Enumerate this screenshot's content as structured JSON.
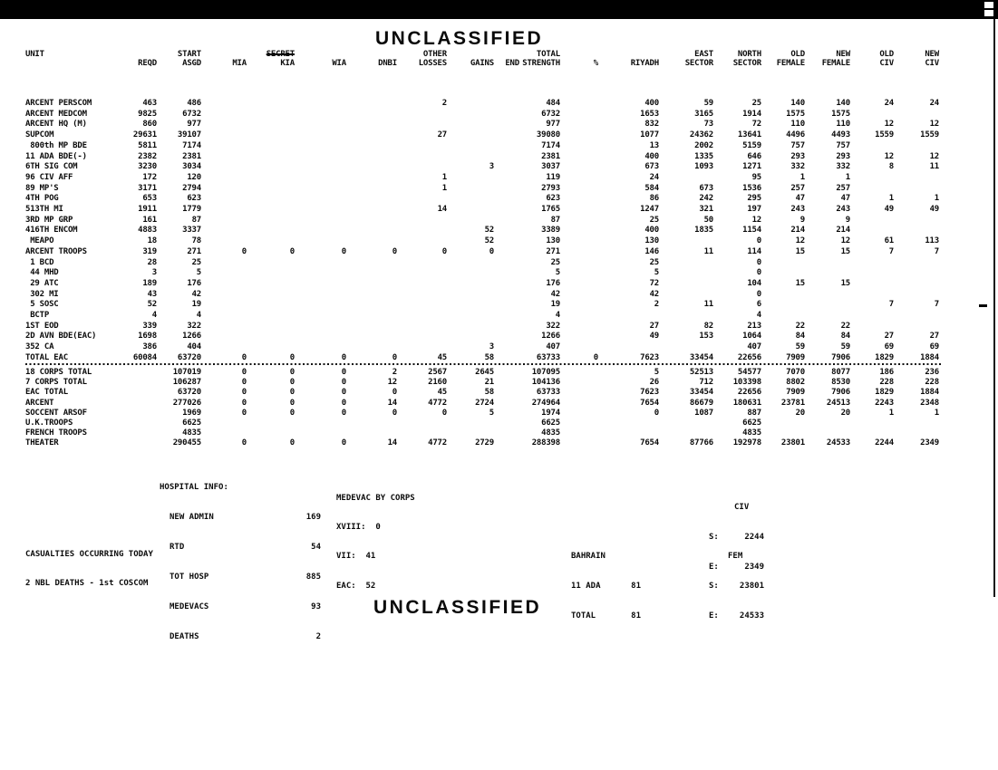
{
  "classification": {
    "top": "UNCLASSIFIED",
    "bottom": "UNCLASSIFIED"
  },
  "table": {
    "columns": [
      {
        "key": "unit",
        "line1": "UNIT",
        "line2": "",
        "align": "left",
        "width": 100
      },
      {
        "key": "reqd",
        "line1": "",
        "line2": "REQD",
        "align": "right",
        "width": 45
      },
      {
        "key": "asgd",
        "line1": "START",
        "line2": "ASGD",
        "align": "right",
        "width": 49
      },
      {
        "key": "mia",
        "line1": "",
        "line2": "MIA",
        "align": "right",
        "width": 50
      },
      {
        "key": "kia",
        "line1": "",
        "line2": "KIA",
        "align": "right",
        "width": 53,
        "struck": "SECRET"
      },
      {
        "key": "wia",
        "line1": "",
        "line2": "WIA",
        "align": "right",
        "width": 57
      },
      {
        "key": "dnbi",
        "line1": "",
        "line2": "DNBI",
        "align": "right",
        "width": 56
      },
      {
        "key": "other_losses",
        "line1": "OTHER",
        "line2": "LOSSES",
        "align": "right",
        "width": 55
      },
      {
        "key": "gains",
        "line1": "",
        "line2": "GAINS",
        "align": "right",
        "width": 52
      },
      {
        "key": "end",
        "line1": "",
        "line2": "END",
        "align": "right",
        "width": 28
      },
      {
        "key": "total_strength",
        "line1": "TOTAL",
        "line2": "STRENGTH",
        "align": "right",
        "width": 45
      },
      {
        "key": "pct",
        "line1": "",
        "line2": "%",
        "align": "right",
        "width": 42
      },
      {
        "key": "riyadh",
        "line1": "",
        "line2": "RIYADH",
        "align": "right",
        "width": 67
      },
      {
        "key": "east_sector",
        "line1": "EAST",
        "line2": "SECTOR",
        "align": "right",
        "width": 60
      },
      {
        "key": "north_sector",
        "line1": "NORTH",
        "line2": "SECTOR",
        "align": "right",
        "width": 53
      },
      {
        "key": "old_female",
        "line1": "OLD",
        "line2": "FEMALE",
        "align": "right",
        "width": 48
      },
      {
        "key": "new_female",
        "line1": "NEW",
        "line2": "FEMALE",
        "align": "right",
        "width": 50
      },
      {
        "key": "old_civ",
        "line1": "OLD",
        "line2": "CIV",
        "align": "right",
        "width": 48
      },
      {
        "key": "new_civ",
        "line1": "NEW",
        "line2": "CIV",
        "align": "right",
        "width": 50
      }
    ],
    "units": [
      [
        "ARCENT PERSCOM",
        "463",
        "486",
        "",
        "",
        "",
        "",
        "2",
        "",
        "",
        "484",
        "",
        "400",
        "59",
        "25",
        "140",
        "140",
        "24",
        "24"
      ],
      [
        "ARCENT MEDCOM",
        "9825",
        "6732",
        "",
        "",
        "",
        "",
        "",
        "",
        "",
        "6732",
        "",
        "1653",
        "3165",
        "1914",
        "1575",
        "1575",
        "",
        ""
      ],
      [
        "ARCENT HQ (M)",
        "860",
        "977",
        "",
        "",
        "",
        "",
        "",
        "",
        "",
        "977",
        "",
        "832",
        "73",
        "72",
        "110",
        "110",
        "12",
        "12"
      ],
      [
        "SUPCOM",
        "29631",
        "39107",
        "",
        "",
        "",
        "",
        "27",
        "",
        "",
        "39080",
        "",
        "1077",
        "24362",
        "13641",
        "4496",
        "4493",
        "1559",
        "1559"
      ],
      [
        " 800th MP BDE",
        "5811",
        "7174",
        "",
        "",
        "",
        "",
        "",
        "",
        "",
        "7174",
        "",
        "13",
        "2002",
        "5159",
        "757",
        "757",
        "",
        ""
      ],
      [
        "11 ADA BDE(-)",
        "2382",
        "2381",
        "",
        "",
        "",
        "",
        "",
        "",
        "",
        "2381",
        "",
        "400",
        "1335",
        "646",
        "293",
        "293",
        "12",
        "12"
      ],
      [
        "6TH SIG COM",
        "3230",
        "3034",
        "",
        "",
        "",
        "",
        "",
        "3",
        "",
        "3037",
        "",
        "673",
        "1093",
        "1271",
        "332",
        "332",
        "8",
        "11"
      ],
      [
        "96 CIV AFF",
        "172",
        "120",
        "",
        "",
        "",
        "",
        "1",
        "",
        "",
        "119",
        "",
        "24",
        "",
        "95",
        "1",
        "1",
        "",
        ""
      ],
      [
        "89 MP'S",
        "3171",
        "2794",
        "",
        "",
        "",
        "",
        "1",
        "",
        "",
        "2793",
        "",
        "584",
        "673",
        "1536",
        "257",
        "257",
        "",
        ""
      ],
      [
        "4TH POG",
        "653",
        "623",
        "",
        "",
        "",
        "",
        "",
        "",
        "",
        "623",
        "",
        "86",
        "242",
        "295",
        "47",
        "47",
        "1",
        "1"
      ],
      [
        "513TH MI",
        "1911",
        "1779",
        "",
        "",
        "",
        "",
        "14",
        "",
        "",
        "1765",
        "",
        "1247",
        "321",
        "197",
        "243",
        "243",
        "49",
        "49"
      ],
      [
        "3RD MP GRP",
        "161",
        "87",
        "",
        "",
        "",
        "",
        "",
        "",
        "",
        "87",
        "",
        "25",
        "50",
        "12",
        "9",
        "9",
        "",
        ""
      ],
      [
        "416TH ENCOM",
        "4883",
        "3337",
        "",
        "",
        "",
        "",
        "",
        "52",
        "",
        "3389",
        "",
        "400",
        "1835",
        "1154",
        "214",
        "214",
        "",
        ""
      ],
      [
        " MEAPO",
        "18",
        "78",
        "",
        "",
        "",
        "",
        "",
        "52",
        "",
        "130",
        "",
        "130",
        "",
        "0",
        "12",
        "12",
        "61",
        "113"
      ],
      [
        "ARCENT TROOPS",
        "319",
        "271",
        "0",
        "0",
        "0",
        "0",
        "0",
        "0",
        "",
        "271",
        "",
        "146",
        "11",
        "114",
        "15",
        "15",
        "7",
        "7"
      ],
      [
        " 1 BCD",
        "28",
        "25",
        "",
        "",
        "",
        "",
        "",
        "",
        "",
        "25",
        "",
        "25",
        "",
        "0",
        "",
        "",
        "",
        ""
      ],
      [
        " 44 MHD",
        "3",
        "5",
        "",
        "",
        "",
        "",
        "",
        "",
        "",
        "5",
        "",
        "5",
        "",
        "0",
        "",
        "",
        "",
        ""
      ],
      [
        " 29 ATC",
        "189",
        "176",
        "",
        "",
        "",
        "",
        "",
        "",
        "",
        "176",
        "",
        "72",
        "",
        "104",
        "15",
        "15",
        "",
        ""
      ],
      [
        " 302 MI",
        "43",
        "42",
        "",
        "",
        "",
        "",
        "",
        "",
        "",
        "42",
        "",
        "42",
        "",
        "0",
        "",
        "",
        "",
        ""
      ],
      [
        " 5 SOSC",
        "52",
        "19",
        "",
        "",
        "",
        "",
        "",
        "",
        "",
        "19",
        "",
        "2",
        "11",
        "6",
        "",
        "",
        "7",
        "7"
      ],
      [
        " BCTP",
        "4",
        "4",
        "",
        "",
        "",
        "",
        "",
        "",
        "",
        "4",
        "",
        "",
        "",
        "4",
        "",
        "",
        "",
        ""
      ],
      [
        "1ST EOD",
        "339",
        "322",
        "",
        "",
        "",
        "",
        "",
        "",
        "",
        "322",
        "",
        "27",
        "82",
        "213",
        "22",
        "22",
        "",
        ""
      ],
      [
        "2D AVN BDE(EAC)",
        "1698",
        "1266",
        "",
        "",
        "",
        "",
        "",
        "",
        "",
        "1266",
        "",
        "49",
        "153",
        "1064",
        "84",
        "84",
        "27",
        "27"
      ],
      [
        "352 CA",
        "386",
        "404",
        "",
        "",
        "",
        "",
        "",
        "3",
        "",
        "407",
        "",
        "",
        "",
        "407",
        "59",
        "59",
        "69",
        "69"
      ],
      [
        "TOTAL EAC",
        "60084",
        "63720",
        "0",
        "0",
        "0",
        "0",
        "45",
        "58",
        "",
        "63733",
        "0",
        "7623",
        "33454",
        "22656",
        "7909",
        "7906",
        "1829",
        "1884"
      ]
    ],
    "summary": [
      [
        "18 CORPS TOTAL",
        "",
        "107019",
        "0",
        "0",
        "0",
        "2",
        "2567",
        "2645",
        "",
        "107095",
        "",
        "5",
        "52513",
        "54577",
        "7070",
        "8077",
        "186",
        "236"
      ],
      [
        "7 CORPS TOTAL",
        "",
        "106287",
        "0",
        "0",
        "0",
        "12",
        "2160",
        "21",
        "",
        "104136",
        "",
        "26",
        "712",
        "103398",
        "8802",
        "8530",
        "228",
        "228"
      ],
      [
        "EAC TOTAL",
        "",
        "63720",
        "0",
        "0",
        "0",
        "0",
        "45",
        "58",
        "",
        "63733",
        "",
        "7623",
        "33454",
        "22656",
        "7909",
        "7906",
        "1829",
        "1884"
      ],
      [
        "ARCENT",
        "",
        "277026",
        "0",
        "0",
        "0",
        "14",
        "4772",
        "2724",
        "",
        "274964",
        "",
        "7654",
        "86679",
        "180631",
        "23781",
        "24513",
        "2243",
        "2348"
      ],
      [
        "SOCCENT ARSOF",
        "",
        "1969",
        "0",
        "0",
        "0",
        "0",
        "0",
        "5",
        "",
        "1974",
        "",
        "0",
        "1087",
        "887",
        "20",
        "20",
        "1",
        "1"
      ],
      [
        "U.K.TROOPS",
        "",
        "6625",
        "",
        "",
        "",
        "",
        "",
        "",
        "",
        "6625",
        "",
        "",
        "",
        "6625",
        "",
        "",
        "",
        ""
      ],
      [
        "FRENCH TROOPS",
        "",
        "4835",
        "",
        "",
        "",
        "",
        "",
        "",
        "",
        "4835",
        "",
        "",
        "",
        "4835",
        "",
        "",
        "",
        ""
      ],
      [
        "THEATER",
        "",
        "290455",
        "0",
        "0",
        "0",
        "14",
        "4772",
        "2729",
        "",
        "288398",
        "",
        "7654",
        "87766",
        "192978",
        "23801",
        "24533",
        "2244",
        "2349"
      ]
    ]
  },
  "hospital": {
    "title": "HOSPITAL INFO:",
    "rows": [
      {
        "label": "NEW ADMIN",
        "value": "169"
      },
      {
        "label": "RTD",
        "value": "54"
      },
      {
        "label": "TOT HOSP",
        "value": "885"
      },
      {
        "label": "MEDEVACS",
        "value": "93"
      },
      {
        "label": "DEATHS",
        "value": "2"
      }
    ]
  },
  "medevac": {
    "title": "MEDEVAC BY CORPS",
    "lines": [
      "XVIII:  0",
      "VII:  41",
      "EAC:  52"
    ]
  },
  "civ_box": {
    "title": "CIV",
    "rows": [
      {
        "label": "S:",
        "value": "2244"
      },
      {
        "label": "E:",
        "value": "2349"
      }
    ]
  },
  "fem_box": {
    "title": "FEM",
    "rows": [
      {
        "label": "S:",
        "value": "23801"
      },
      {
        "label": "E:",
        "value": "24533"
      }
    ]
  },
  "bahrain": {
    "title": "BAHRAIN",
    "rows": [
      {
        "label": "11 ADA",
        "value": "81"
      },
      {
        "label": "TOTAL",
        "value": "81"
      }
    ]
  },
  "casualties": {
    "line1": "CASUALTIES OCCURRING TODAY",
    "line2": "2 NBL DEATHS - 1st COSCOM"
  }
}
